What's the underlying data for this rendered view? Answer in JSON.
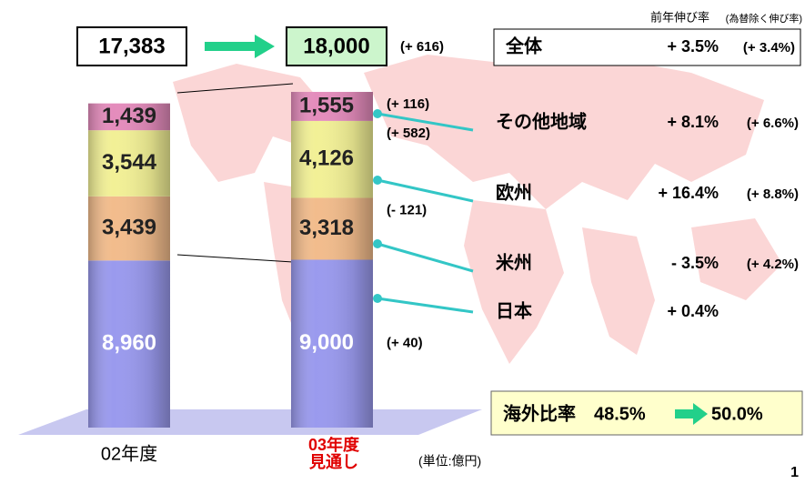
{
  "chart_data": {
    "type": "bar",
    "stacked": true,
    "categories": [
      "02年度",
      "03年度見通し"
    ],
    "series": [
      {
        "name": "日本",
        "color": "#9a9aee",
        "values": [
          8960,
          9000
        ],
        "value_labels": [
          "8,960",
          "9,000"
        ],
        "change": "(+ 40)",
        "growth": "+ 0.4%"
      },
      {
        "name": "米州",
        "color": "#f2bc8c",
        "values": [
          3439,
          3318
        ],
        "value_labels": [
          "3,439",
          "3,318"
        ],
        "change": "(- 121)",
        "growth": "- 3.5%",
        "growth_ex_fx": "(+ 4.2%)"
      },
      {
        "name": "欧州",
        "color": "#f2f096",
        "values": [
          3544,
          4126
        ],
        "value_labels": [
          "3,544",
          "4,126"
        ],
        "change": "(+ 582)",
        "growth": "+ 16.4%",
        "growth_ex_fx": "(+ 8.8%)"
      },
      {
        "name": "その他地域",
        "color": "#e48cbc",
        "values": [
          1439,
          1555
        ],
        "value_labels": [
          "1,439",
          "1,555"
        ],
        "change": "(+ 116)",
        "growth": "+ 8.1%",
        "growth_ex_fx": "(+ 6.6%)"
      }
    ],
    "totals": [
      17383,
      18000
    ],
    "total_labels": [
      "17,383",
      "18,000"
    ],
    "total_change": "(+ 616)",
    "growth_header": "前年伸び率",
    "growth_header_note": "(為替除く伸び率)",
    "overall": {
      "name": "全体",
      "growth": "+ 3.5%",
      "growth_ex_fx": "(+ 3.4%)"
    },
    "overseas": {
      "label": "海外比率",
      "from": "48.5%",
      "to": "50.0%"
    },
    "unit": "(単位:億円)",
    "page": "1"
  }
}
